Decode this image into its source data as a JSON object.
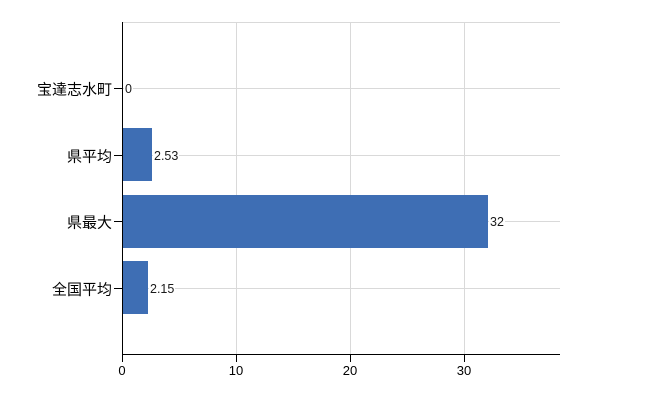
{
  "chart_data": {
    "type": "bar",
    "orientation": "horizontal",
    "title": "",
    "categories": [
      "宝達志水町",
      "県平均",
      "県最大",
      "全国平均"
    ],
    "values": [
      0,
      2.53,
      32,
      2.15
    ],
    "value_labels": [
      "0",
      "2.53",
      "32",
      "2.15"
    ],
    "x_ticks": [
      0,
      10,
      20,
      30
    ],
    "x_tick_labels": [
      "0",
      "10",
      "20",
      "30"
    ],
    "xlim": [
      0,
      38.4
    ],
    "grid": true,
    "legend": false,
    "colors": {
      "bar": "#3E6EB4",
      "grid": "#D9D9D9",
      "axis": "#000000",
      "text": "#000000",
      "background": "#FFFFFF"
    }
  }
}
